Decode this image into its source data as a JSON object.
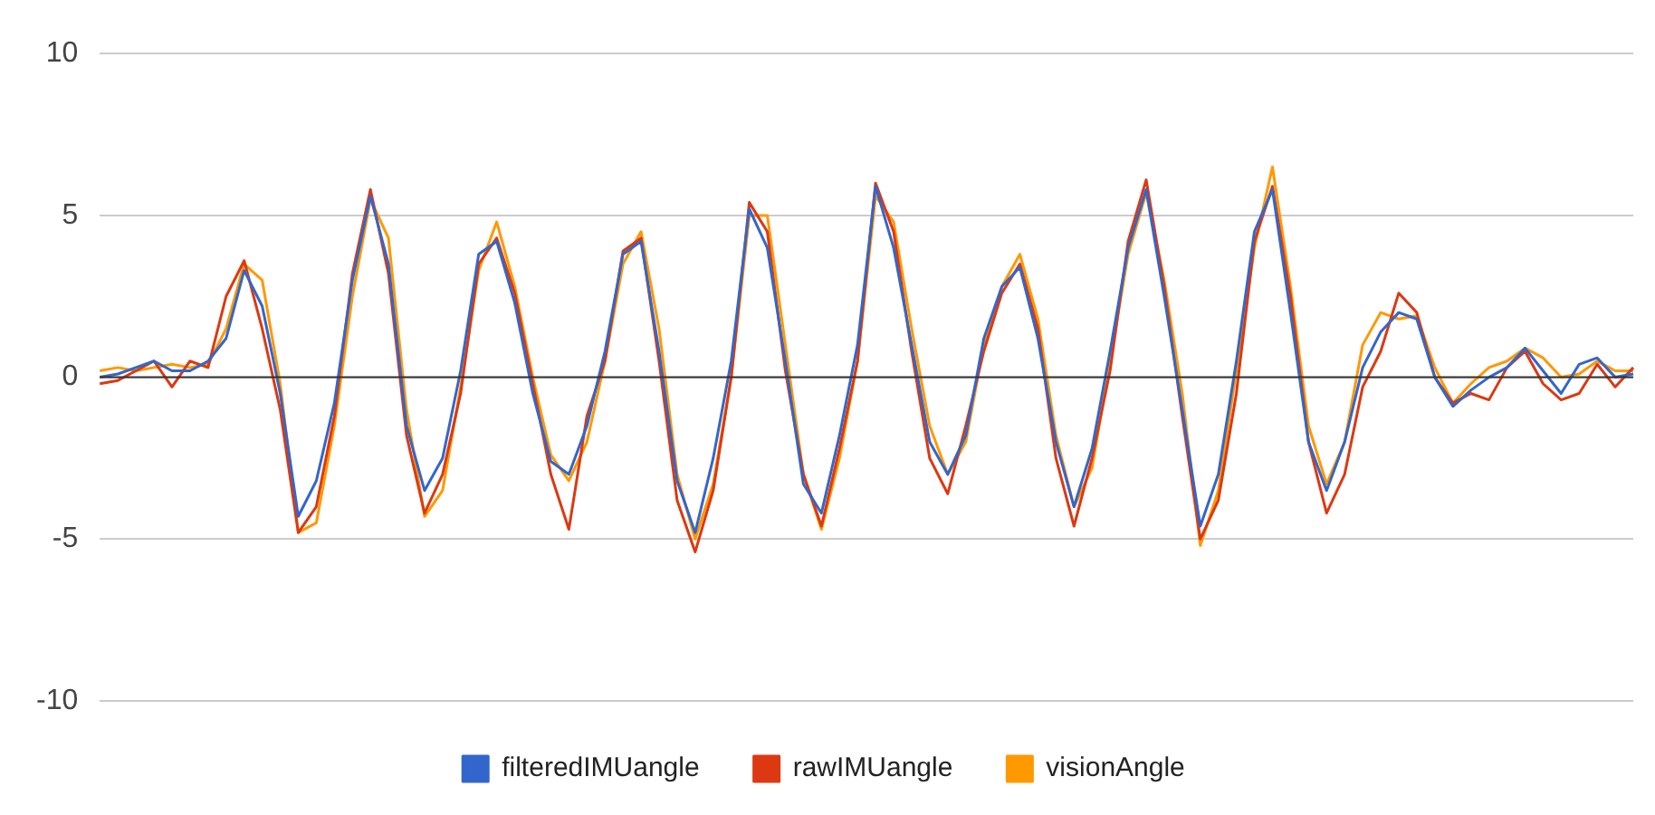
{
  "chart_data": {
    "type": "line",
    "categories": [
      null,
      null,
      null,
      null,
      null,
      null,
      null,
      null,
      null,
      null,
      null,
      null,
      null,
      null,
      null,
      null,
      null,
      null,
      null,
      null,
      null,
      null,
      null,
      null,
      null,
      null,
      null,
      null,
      null,
      null,
      null,
      null,
      null,
      null,
      null,
      null,
      null,
      null,
      null,
      null,
      null,
      null,
      null,
      null,
      null,
      null,
      null,
      null,
      null,
      null,
      null,
      null,
      null,
      null,
      null,
      null,
      null,
      null,
      null,
      null,
      null,
      null,
      null,
      null,
      null,
      null,
      null,
      null,
      null,
      null,
      null,
      null,
      null,
      null,
      null,
      null,
      null,
      null,
      null,
      null,
      null,
      null,
      null,
      null,
      null,
      null
    ],
    "series": [
      {
        "name": "filteredIMUangle",
        "color": "#3366cc",
        "values": [
          0,
          0.1,
          0.3,
          0.5,
          0.2,
          0.2,
          0.5,
          1.2,
          3.3,
          2.2,
          -0.5,
          -4.3,
          -3.2,
          -0.8,
          3,
          5.6,
          3.5,
          -1.5,
          -3.5,
          -2.5,
          0.2,
          3.8,
          4.2,
          2.3,
          -0.5,
          -2.6,
          -3,
          -1.5,
          0.8,
          3.8,
          4.2,
          0.8,
          -3.2,
          -4.8,
          -2.5,
          0.5,
          5.2,
          4,
          0.5,
          -3.3,
          -4.2,
          -1.8,
          1,
          5.9,
          4,
          1,
          -2,
          -3,
          -1.8,
          1.2,
          2.8,
          3.4,
          1.2,
          -2,
          -4,
          -2.2,
          0.8,
          4,
          5.8,
          2.5,
          -1,
          -4.6,
          -3,
          0.5,
          4.5,
          5.8,
          2,
          -2,
          -3.5,
          -2,
          0.3,
          1.4,
          2,
          1.8,
          0,
          -0.9,
          -0.4,
          0,
          0.3,
          0.9,
          0.2,
          -0.5,
          0.4,
          0.6,
          0,
          0.1
        ]
      },
      {
        "name": "rawIMUangle",
        "color": "#dc3912",
        "values": [
          -0.2,
          -0.1,
          0.2,
          0.5,
          -0.3,
          0.5,
          0.3,
          2.5,
          3.6,
          1.5,
          -1,
          -4.8,
          -4,
          -1.2,
          3.2,
          5.8,
          3.2,
          -1.8,
          -4.2,
          -3,
          -0.5,
          3.5,
          4.3,
          2.6,
          -0.2,
          -3,
          -4.7,
          -1.2,
          0.5,
          3.9,
          4.3,
          0.5,
          -3.8,
          -5.4,
          -3.5,
          0,
          5.4,
          4.5,
          0.2,
          -3,
          -4.6,
          -2.2,
          0.5,
          6,
          4.5,
          0.8,
          -2.5,
          -3.6,
          -1.5,
          0.8,
          2.6,
          3.5,
          1.5,
          -2.5,
          -4.6,
          -2.5,
          0.2,
          4.2,
          6.1,
          2.8,
          -1.2,
          -5,
          -3.8,
          -0.5,
          4.2,
          5.9,
          2.5,
          -2,
          -4.2,
          -3,
          -0.3,
          0.8,
          2.6,
          2,
          0,
          -0.8,
          -0.5,
          -0.7,
          0.3,
          0.8,
          -0.2,
          -0.7,
          -0.5,
          0.4,
          -0.3,
          0.3
        ]
      },
      {
        "name": "visionAngle",
        "color": "#ff9900",
        "values": [
          0.2,
          0.3,
          0.2,
          0.3,
          0.4,
          0.3,
          0.4,
          1.5,
          3.5,
          3,
          -0.2,
          -4.8,
          -4.5,
          -1.5,
          2.5,
          5.5,
          4.3,
          -1,
          -4.3,
          -3.5,
          -0.3,
          3.3,
          4.8,
          2.8,
          0,
          -2.4,
          -3.2,
          -2,
          0.5,
          3.5,
          4.5,
          1.5,
          -3,
          -5,
          -3.3,
          0,
          5,
          5,
          1,
          -3,
          -4.7,
          -2.5,
          0.5,
          5.6,
          4.8,
          1.5,
          -1.5,
          -3,
          -2,
          1,
          2.8,
          3.8,
          1.8,
          -1.8,
          -4,
          -2.8,
          0.5,
          3.8,
          5.7,
          3,
          -0.5,
          -5.2,
          -3.5,
          0.2,
          4,
          6.5,
          2.8,
          -1.5,
          -3.3,
          -2,
          1,
          2,
          1.8,
          1.9,
          0.3,
          -0.8,
          -0.2,
          0.3,
          0.5,
          0.9,
          0.6,
          0,
          0.1,
          0.5,
          0.2,
          0.2
        ]
      }
    ],
    "ylim": [
      -10,
      10
    ],
    "yticks": [
      -10,
      -5,
      0,
      5,
      10
    ],
    "grid": "y",
    "legend": "bottom",
    "tick_labels": "y",
    "ref_lines": [
      {
        "axis": "y",
        "value": 0,
        "color": "#333333"
      }
    ]
  }
}
